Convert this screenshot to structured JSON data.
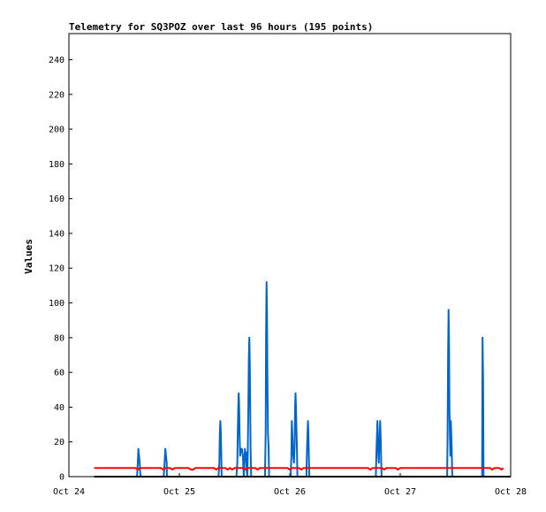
{
  "chart_data": {
    "type": "line",
    "title": "Telemetry for SQ3POZ over last 96 hours (195 points)",
    "xlabel": "",
    "ylabel": "Values",
    "x_ticks": [
      "Oct 24",
      "Oct 25",
      "Oct 26",
      "Oct 27",
      "Oct 28"
    ],
    "xlim": [
      0,
      96
    ],
    "ylim": [
      0,
      255
    ],
    "y_ticks": [
      0,
      20,
      40,
      60,
      80,
      100,
      120,
      140,
      160,
      180,
      200,
      220,
      240
    ],
    "grid": false,
    "legend": "none",
    "series": [
      {
        "color": "#0066cc",
        "points": [
          [
            5.5,
            0
          ],
          [
            14.8,
            0
          ],
          [
            15.0,
            9
          ],
          [
            15.1,
            16
          ],
          [
            15.25,
            12
          ],
          [
            15.4,
            7
          ],
          [
            15.5,
            2
          ],
          [
            15.6,
            0
          ],
          [
            20.6,
            0
          ],
          [
            20.8,
            8
          ],
          [
            20.95,
            16
          ],
          [
            21.1,
            12
          ],
          [
            21.25,
            8
          ],
          [
            21.3,
            0
          ],
          [
            32.5,
            0
          ],
          [
            32.7,
            8
          ],
          [
            32.8,
            25
          ],
          [
            32.9,
            32
          ],
          [
            33.0,
            26
          ],
          [
            33.1,
            14
          ],
          [
            33.2,
            0
          ],
          [
            36.4,
            0
          ],
          [
            36.6,
            8
          ],
          [
            36.7,
            24
          ],
          [
            36.8,
            40
          ],
          [
            36.9,
            48
          ],
          [
            37.0,
            40
          ],
          [
            37.1,
            24
          ],
          [
            37.2,
            12
          ],
          [
            37.4,
            16
          ],
          [
            37.6,
            16
          ],
          [
            37.8,
            12
          ],
          [
            37.9,
            6
          ],
          [
            38.0,
            0
          ],
          [
            38.1,
            5
          ],
          [
            38.25,
            16
          ],
          [
            38.4,
            10
          ],
          [
            38.5,
            14
          ],
          [
            38.6,
            6
          ],
          [
            38.75,
            0
          ],
          [
            38.85,
            8
          ],
          [
            39.0,
            40
          ],
          [
            39.1,
            66
          ],
          [
            39.2,
            80
          ],
          [
            39.3,
            66
          ],
          [
            39.4,
            40
          ],
          [
            39.5,
            14
          ],
          [
            39.6,
            0
          ],
          [
            42.6,
            0
          ],
          [
            42.75,
            25
          ],
          [
            42.85,
            85
          ],
          [
            42.95,
            112
          ],
          [
            43.05,
            94
          ],
          [
            43.15,
            56
          ],
          [
            43.25,
            25
          ],
          [
            43.4,
            17
          ],
          [
            43.5,
            0
          ],
          [
            48.2,
            0
          ],
          [
            48.35,
            12
          ],
          [
            48.45,
            32
          ],
          [
            48.55,
            25
          ],
          [
            48.65,
            18
          ],
          [
            48.75,
            12
          ],
          [
            48.9,
            8
          ],
          [
            49.05,
            18
          ],
          [
            49.15,
            40
          ],
          [
            49.25,
            48
          ],
          [
            49.35,
            40
          ],
          [
            49.45,
            26
          ],
          [
            49.55,
            16
          ],
          [
            49.65,
            0
          ],
          [
            51.6,
            0
          ],
          [
            51.75,
            16
          ],
          [
            51.85,
            25
          ],
          [
            51.95,
            32
          ],
          [
            52.05,
            25
          ],
          [
            52.15,
            12
          ],
          [
            52.25,
            0
          ],
          [
            66.7,
            0
          ],
          [
            66.85,
            16
          ],
          [
            66.95,
            24
          ],
          [
            67.05,
            32
          ],
          [
            67.15,
            24
          ],
          [
            67.25,
            12
          ],
          [
            67.35,
            8
          ],
          [
            67.45,
            18
          ],
          [
            67.55,
            24
          ],
          [
            67.65,
            32
          ],
          [
            67.75,
            22
          ],
          [
            67.85,
            10
          ],
          [
            67.95,
            0
          ],
          [
            82.2,
            0
          ],
          [
            82.3,
            24
          ],
          [
            82.4,
            72
          ],
          [
            82.5,
            96
          ],
          [
            82.6,
            80
          ],
          [
            82.7,
            40
          ],
          [
            82.8,
            24
          ],
          [
            82.9,
            12
          ],
          [
            83.0,
            32
          ],
          [
            83.1,
            24
          ],
          [
            83.2,
            16
          ],
          [
            83.3,
            0
          ],
          [
            89.8,
            0
          ],
          [
            89.9,
            80
          ],
          [
            90.0,
            56
          ],
          [
            90.1,
            0
          ],
          [
            96,
            0
          ]
        ]
      },
      {
        "color": "#ff0000",
        "points": [
          [
            5.5,
            5
          ],
          [
            14.5,
            5
          ],
          [
            15.0,
            4
          ],
          [
            15.5,
            5
          ],
          [
            20.0,
            5
          ],
          [
            20.5,
            4
          ],
          [
            21.0,
            5
          ],
          [
            22.0,
            5
          ],
          [
            22.5,
            4
          ],
          [
            23.0,
            5
          ],
          [
            26.0,
            5
          ],
          [
            26.5,
            4
          ],
          [
            27.0,
            4
          ],
          [
            27.5,
            5
          ],
          [
            31.5,
            5
          ],
          [
            32.0,
            4
          ],
          [
            32.5,
            5
          ],
          [
            34.0,
            5
          ],
          [
            34.5,
            4
          ],
          [
            35.0,
            5
          ],
          [
            35.5,
            4
          ],
          [
            36.0,
            5
          ],
          [
            38.0,
            5
          ],
          [
            38.5,
            4
          ],
          [
            39.0,
            5
          ],
          [
            40.5,
            5
          ],
          [
            41.0,
            4
          ],
          [
            41.5,
            5
          ],
          [
            47.5,
            5
          ],
          [
            48.0,
            4
          ],
          [
            48.5,
            5
          ],
          [
            50.0,
            5
          ],
          [
            50.5,
            4
          ],
          [
            51.0,
            5
          ],
          [
            56.5,
            5
          ],
          [
            57.0,
            5
          ],
          [
            65.0,
            5
          ],
          [
            65.5,
            4
          ],
          [
            66.0,
            5
          ],
          [
            68.0,
            5
          ],
          [
            68.5,
            4
          ],
          [
            69.0,
            5
          ],
          [
            71.0,
            5
          ],
          [
            71.5,
            4
          ],
          [
            72.0,
            5
          ],
          [
            76.5,
            5
          ],
          [
            77.0,
            5
          ],
          [
            80.5,
            5
          ],
          [
            81.0,
            5
          ],
          [
            91.5,
            5
          ],
          [
            92.0,
            4
          ],
          [
            92.5,
            5
          ],
          [
            93.5,
            5
          ],
          [
            94.0,
            4
          ],
          [
            94.4,
            5
          ]
        ]
      },
      {
        "color": "#000000",
        "points": [
          [
            5.5,
            0
          ],
          [
            96,
            0
          ]
        ]
      }
    ]
  }
}
